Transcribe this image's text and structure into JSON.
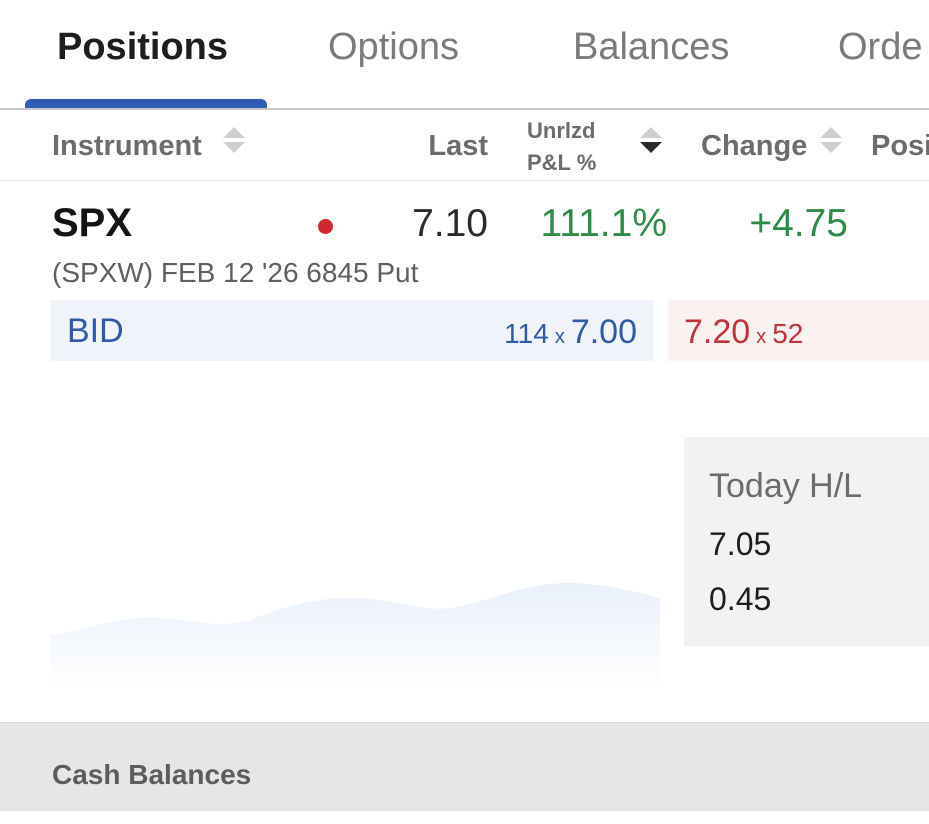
{
  "tabs": [
    {
      "label": "Positions",
      "active": true
    },
    {
      "label": "Options",
      "active": false
    },
    {
      "label": "Balances",
      "active": false
    },
    {
      "label": "Orde",
      "active": false
    }
  ],
  "columns": {
    "instrument": "Instrument",
    "last": "Last",
    "pnl_line1": "Unrlzd",
    "pnl_line2": "P&L %",
    "change": "Change",
    "position": "Posi"
  },
  "position": {
    "symbol": "SPX",
    "status_color": "#d1282f",
    "last": "7.10",
    "unrealized_pnl_pct": "111.1%",
    "change": "+4.75",
    "description": "(SPXW) FEB 12 '26 6845 Put",
    "bid": {
      "label": "BID",
      "size": "114",
      "x": "x",
      "price": "7.00"
    },
    "ask": {
      "price": "7.20",
      "x": "x",
      "size": "52"
    }
  },
  "today_hl": {
    "title": "Today H/L",
    "high": "7.05",
    "low": "0.45"
  },
  "cash_balances": {
    "label": "Cash Balances"
  },
  "colors": {
    "accent": "#2f5db4",
    "positive": "#2f8a4a",
    "negative": "#c0333b",
    "status_dot": "#d1282f"
  }
}
